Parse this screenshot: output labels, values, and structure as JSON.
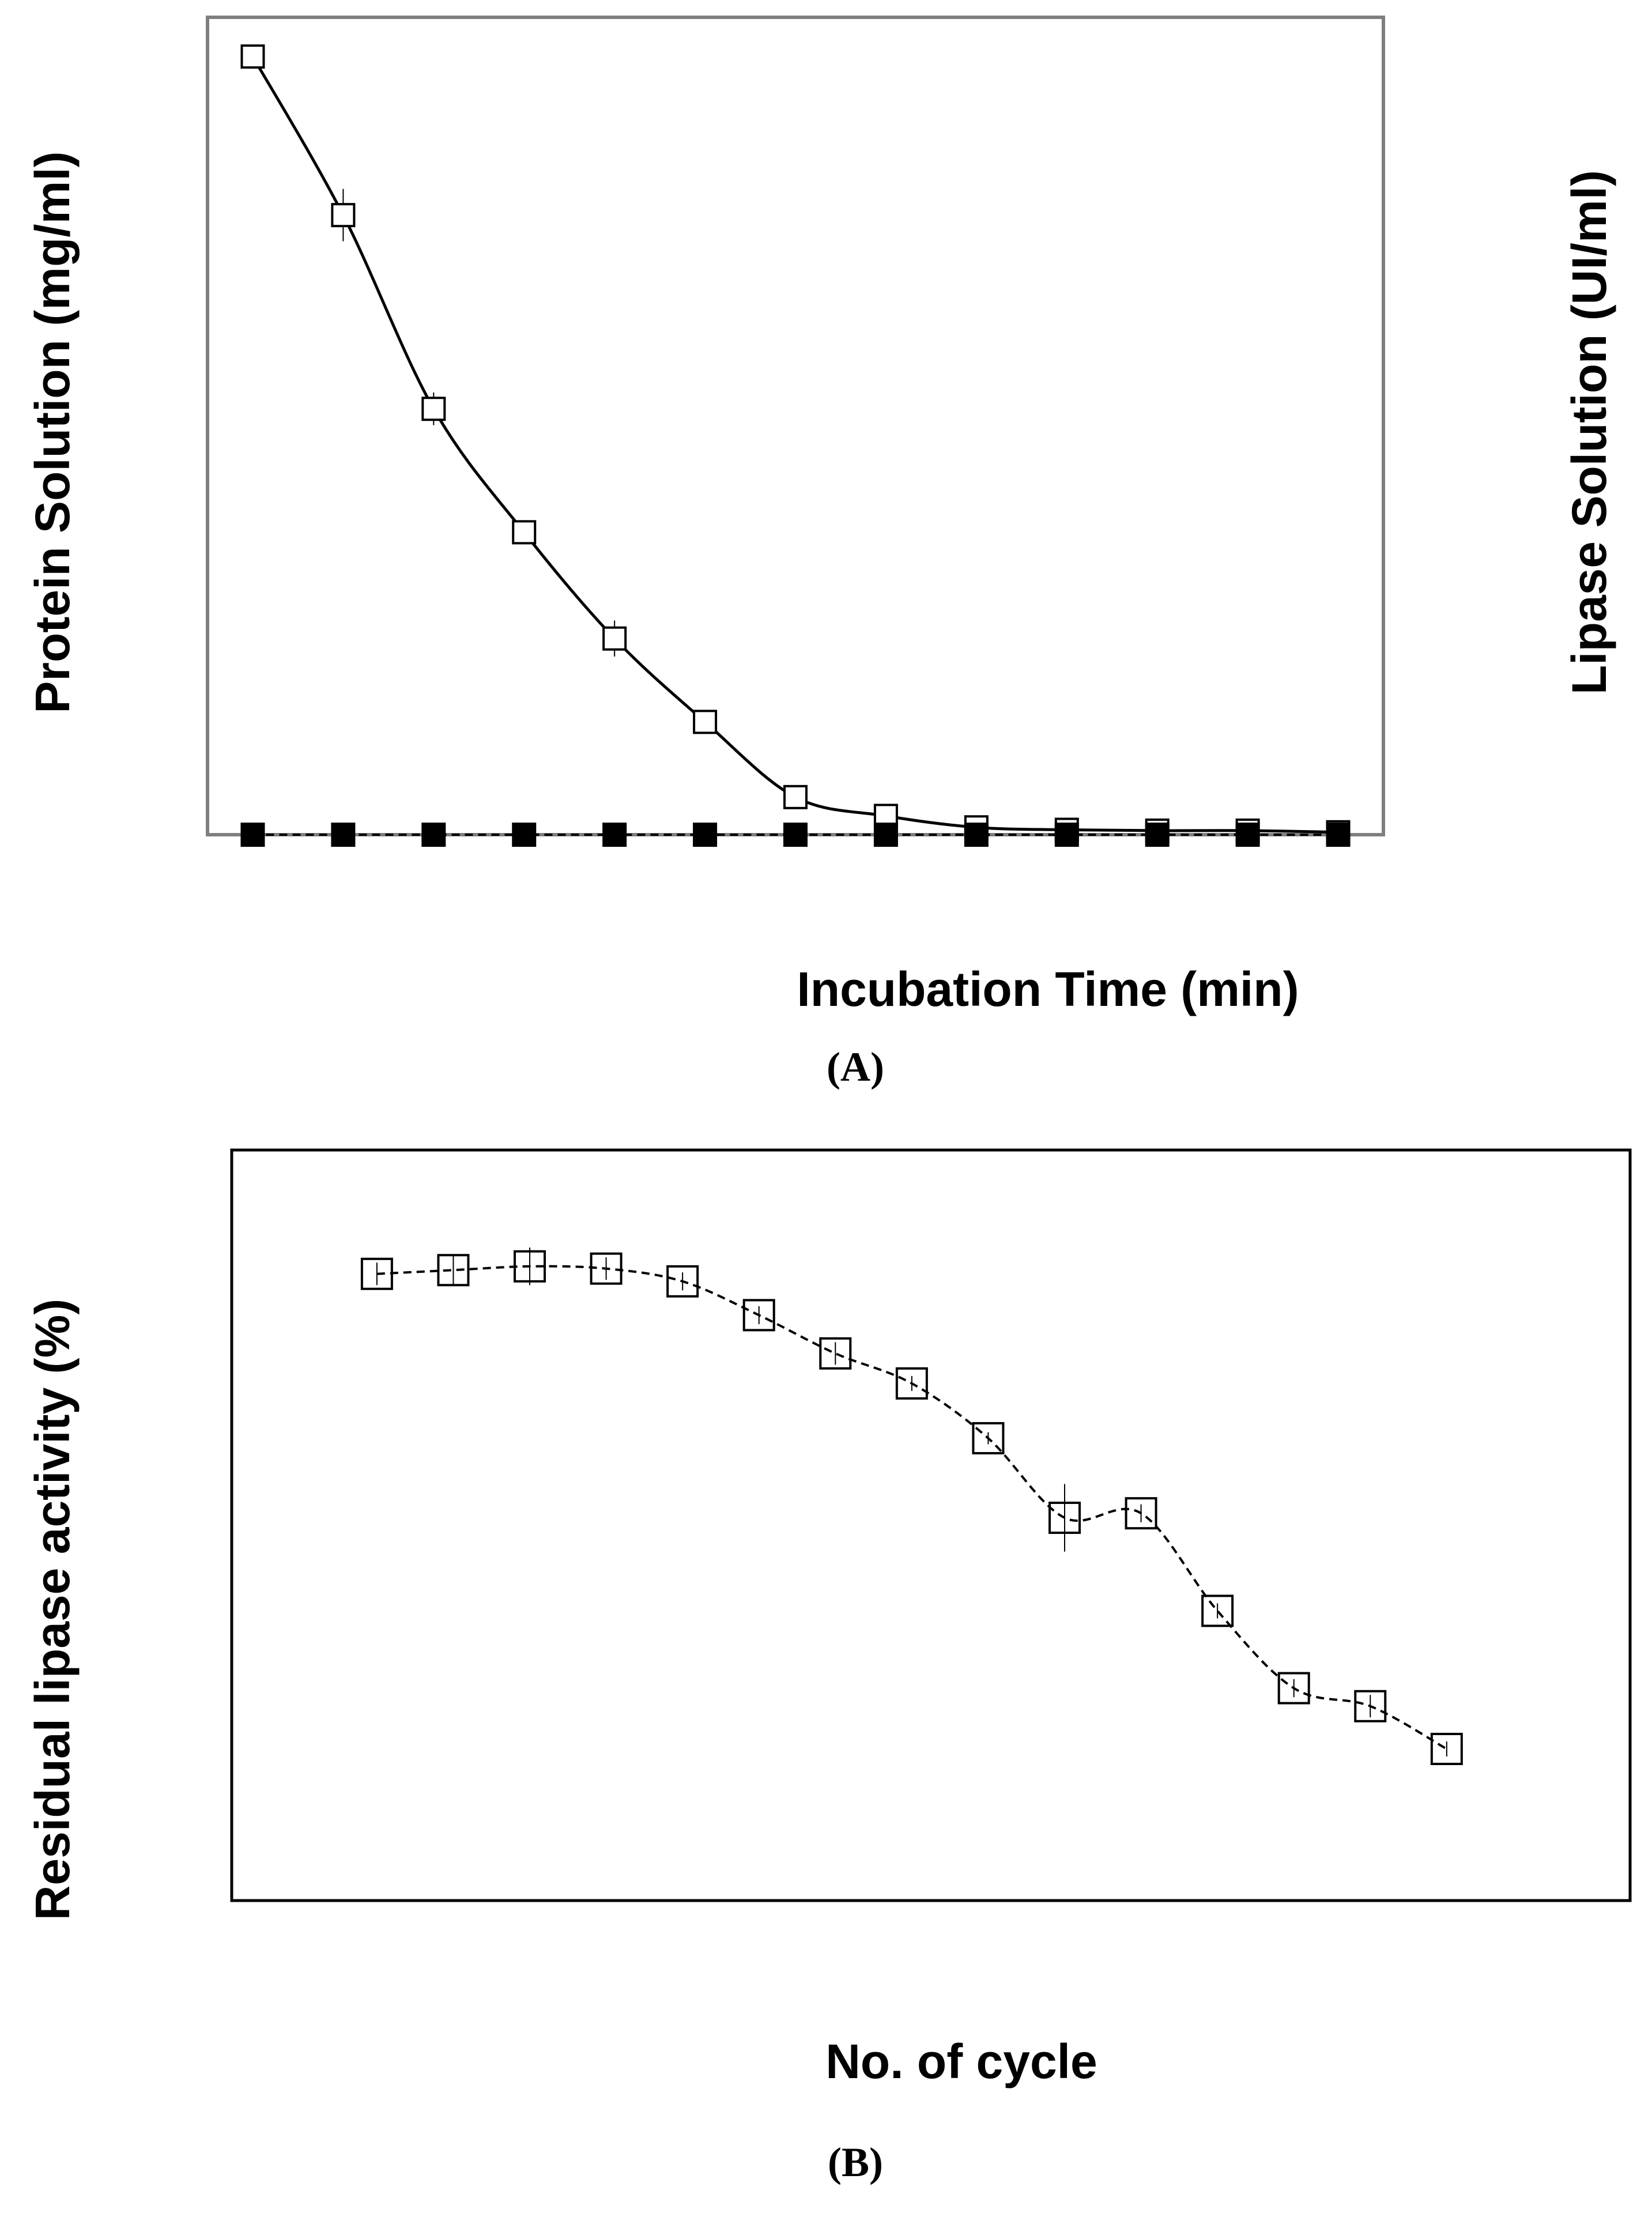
{
  "chart_data": [
    {
      "type": "line",
      "panel_label": "(A)",
      "xlabel": "Incubation Time (min)",
      "ylabel": "Protein Solution (mg/ml)",
      "y2label": "Lipase Solution (UI/ml)",
      "x": [
        1,
        2,
        3,
        4,
        5,
        6,
        7,
        8,
        9,
        10,
        11,
        12,
        13
      ],
      "xlim": [
        0.5,
        13.5
      ],
      "ylim": [
        0,
        100
      ],
      "grid": false,
      "series": [
        {
          "name": "Protein Solution",
          "marker": "open-square",
          "line": "solid",
          "values": [
            95.2,
            75.8,
            52.1,
            37.0,
            24.0,
            13.8,
            4.6,
            2.3,
            0.9,
            0.6,
            0.5,
            0.5,
            0.3
          ],
          "errors": [
            0,
            3.2,
            2.0,
            0,
            2.2,
            0,
            0,
            0,
            0,
            0,
            0,
            0,
            0
          ]
        },
        {
          "name": "Lipase Solution",
          "marker": "filled-square",
          "line": "dashed",
          "values": [
            0,
            0,
            0,
            0,
            0,
            0,
            0,
            0,
            0,
            0,
            0,
            0,
            0
          ]
        }
      ]
    },
    {
      "type": "line",
      "panel_label": "(B)",
      "xlabel": "No. of cycle",
      "ylabel": "Residual lipase activity (%)",
      "x": [
        1,
        2,
        3,
        4,
        5,
        6,
        7,
        8,
        9,
        10,
        11,
        12,
        13,
        14,
        15
      ],
      "xlim": [
        -0.9,
        17.4
      ],
      "ylim": [
        0,
        100
      ],
      "grid": false,
      "series": [
        {
          "name": "Residual lipase activity",
          "marker": "open-square",
          "line": "dashed",
          "values": [
            83.5,
            84.0,
            84.5,
            84.2,
            82.5,
            78.0,
            72.9,
            68.9,
            61.6,
            51.0,
            51.6,
            38.6,
            28.3,
            25.9,
            20.2
          ],
          "errors": [
            1.5,
            2.0,
            2.5,
            1.5,
            1.2,
            1.2,
            1.5,
            1.0,
            0.8,
            4.5,
            1.2,
            1.0,
            1.2,
            1.5,
            1.0
          ]
        }
      ]
    }
  ]
}
